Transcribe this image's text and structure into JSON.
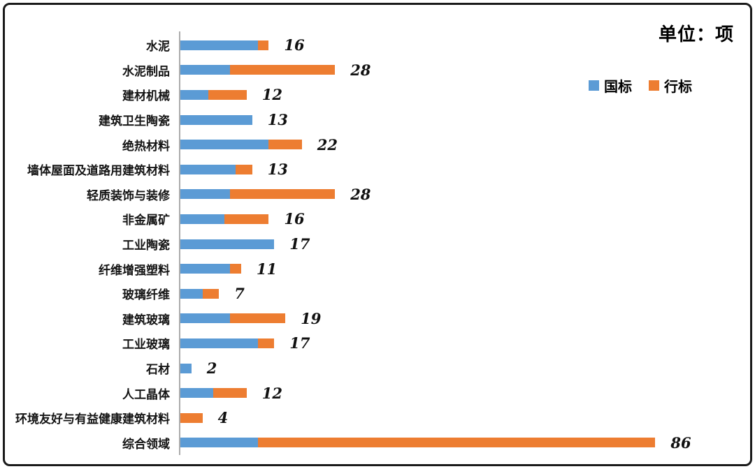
{
  "title": "单位：项",
  "legend": [
    {
      "label": "国标",
      "color": "#5B9BD5"
    },
    {
      "label": "行标",
      "color": "#ED7D31"
    }
  ],
  "chart_data": {
    "type": "bar",
    "orientation": "horizontal",
    "stacked": true,
    "title": "单位：项",
    "legend_position": "right-upper",
    "grid": false,
    "xlim": [
      0,
      88
    ],
    "categories": [
      "水泥",
      "水泥制品",
      "建材机械",
      "建筑卫生陶瓷",
      "绝热材料",
      "墙体屋面及道路用建筑材料",
      "轻质装饰与装修",
      "非金属矿",
      "工业陶瓷",
      "纤维增强塑料",
      "玻璃纤维",
      "建筑玻璃",
      "工业玻璃",
      "石材",
      "人工晶体",
      "环境友好与有益健康建筑材料",
      "综合领域"
    ],
    "series": [
      {
        "name": "国标",
        "color": "#5B9BD5",
        "values": [
          14,
          9,
          5,
          13,
          16,
          10,
          9,
          8,
          17,
          9,
          4,
          9,
          14,
          2,
          6,
          0,
          14
        ]
      },
      {
        "name": "行标",
        "color": "#ED7D31",
        "values": [
          2,
          19,
          7,
          0,
          6,
          3,
          19,
          8,
          0,
          2,
          3,
          10,
          3,
          0,
          6,
          4,
          72
        ]
      }
    ],
    "totals": [
      16,
      28,
      12,
      13,
      22,
      13,
      28,
      16,
      17,
      11,
      7,
      19,
      17,
      2,
      12,
      4,
      86
    ]
  }
}
